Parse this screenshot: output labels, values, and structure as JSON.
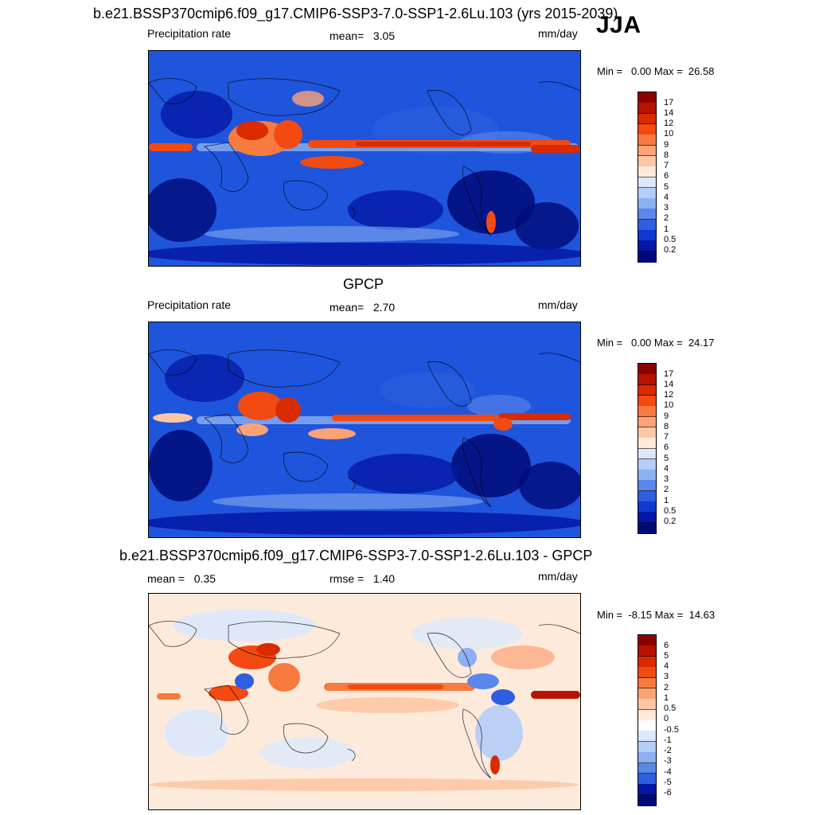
{
  "figure": {
    "title": "b.e21.BSSP370cmip6.f09_g17.CMIP6-SSP3-7.0-SSP1-2.6Lu.103 (yrs 2015-2039)",
    "season": "JJA"
  },
  "chart_data": [
    {
      "type": "heatmap",
      "title": "",
      "subtitle_left": "Precipitation rate",
      "mean_text": "mean=   3.05",
      "units": "mm/day",
      "minmax_text": "Min =   0.00 Max =  26.58",
      "min": 0.0,
      "max": 26.58,
      "mean": 3.05,
      "colorbar_levels": [
        "17",
        "14",
        "12",
        "10",
        "9",
        "8",
        "7",
        "6",
        "5",
        "4",
        "3",
        "2",
        "1",
        "0.5",
        "0.2"
      ],
      "colorbar_colors": [
        "#8c0000",
        "#b51400",
        "#d92a00",
        "#f24a10",
        "#f77a40",
        "#fba277",
        "#fdc6a4",
        "#feeadb",
        "#dce8fb",
        "#b5cdf7",
        "#8db0f2",
        "#5b87ea",
        "#2d5fe0",
        "#0f3ad0",
        "#0418a6",
        "#000a78"
      ]
    },
    {
      "type": "heatmap",
      "title": "GPCP",
      "subtitle_left": "Precipitation rate",
      "mean_text": "mean=   2.70",
      "units": "mm/day",
      "minmax_text": "Min =   0.00 Max =  24.17",
      "min": 0.0,
      "max": 24.17,
      "mean": 2.7,
      "colorbar_levels": [
        "17",
        "14",
        "12",
        "10",
        "9",
        "8",
        "7",
        "6",
        "5",
        "4",
        "3",
        "2",
        "1",
        "0.5",
        "0.2"
      ],
      "colorbar_colors": [
        "#8c0000",
        "#b51400",
        "#d92a00",
        "#f24a10",
        "#f77a40",
        "#fba277",
        "#fdc6a4",
        "#feeadb",
        "#dce8fb",
        "#b5cdf7",
        "#8db0f2",
        "#5b87ea",
        "#2d5fe0",
        "#0f3ad0",
        "#0418a6",
        "#000a78"
      ]
    },
    {
      "type": "heatmap",
      "title": "b.e21.BSSP370cmip6.f09_g17.CMIP6-SSP3-7.0-SSP1-2.6Lu.103 - GPCP",
      "subtitle_left": "mean =   0.35",
      "mean_text": "rmse =   1.40",
      "units": "mm/day",
      "minmax_text": "Min =  -8.15 Max =  14.63",
      "min": -8.15,
      "max": 14.63,
      "mean": 0.35,
      "rmse": 1.4,
      "colorbar_levels": [
        "6",
        "5",
        "4",
        "3",
        "2",
        "1",
        "0.5",
        "0",
        "-0.5",
        "-1",
        "-2",
        "-3",
        "-4",
        "-5",
        "-6"
      ],
      "colorbar_colors": [
        "#8c0000",
        "#b51400",
        "#d92a00",
        "#f24a10",
        "#f77a40",
        "#fba277",
        "#fdc6a4",
        "#feeadb",
        "#ffffff",
        "#dce8fb",
        "#b5cdf7",
        "#8db0f2",
        "#5b87ea",
        "#2d5fe0",
        "#0418a6",
        "#000a78"
      ]
    }
  ]
}
